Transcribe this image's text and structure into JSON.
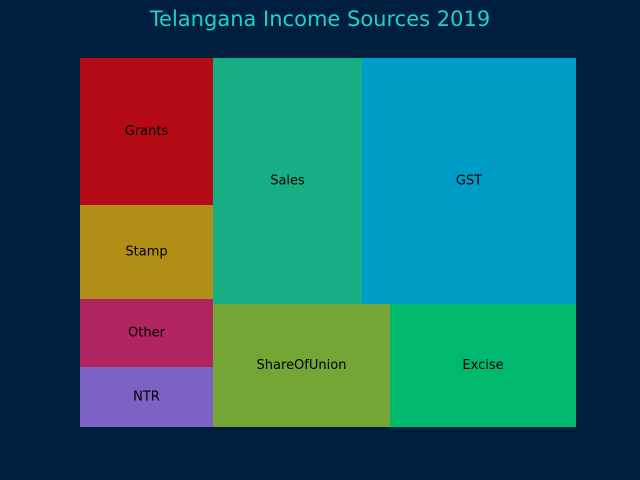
{
  "chart_data": {
    "type": "treemap",
    "title": "Telangana Income Sources 2019",
    "background": "#001f3f",
    "title_color": "#1fd0d0",
    "items": [
      {
        "label": "Grants",
        "color": "#b30a16"
      },
      {
        "label": "Stamp",
        "color": "#b18f16"
      },
      {
        "label": "Other",
        "color": "#b02460"
      },
      {
        "label": "NTR",
        "color": "#7b62c4"
      },
      {
        "label": "Sales",
        "color": "#18ae84"
      },
      {
        "label": "GST",
        "color": "#009cc8"
      },
      {
        "label": "ShareOfUnion",
        "color": "#75a534"
      },
      {
        "label": "Excise",
        "color": "#00b96e"
      }
    ]
  }
}
